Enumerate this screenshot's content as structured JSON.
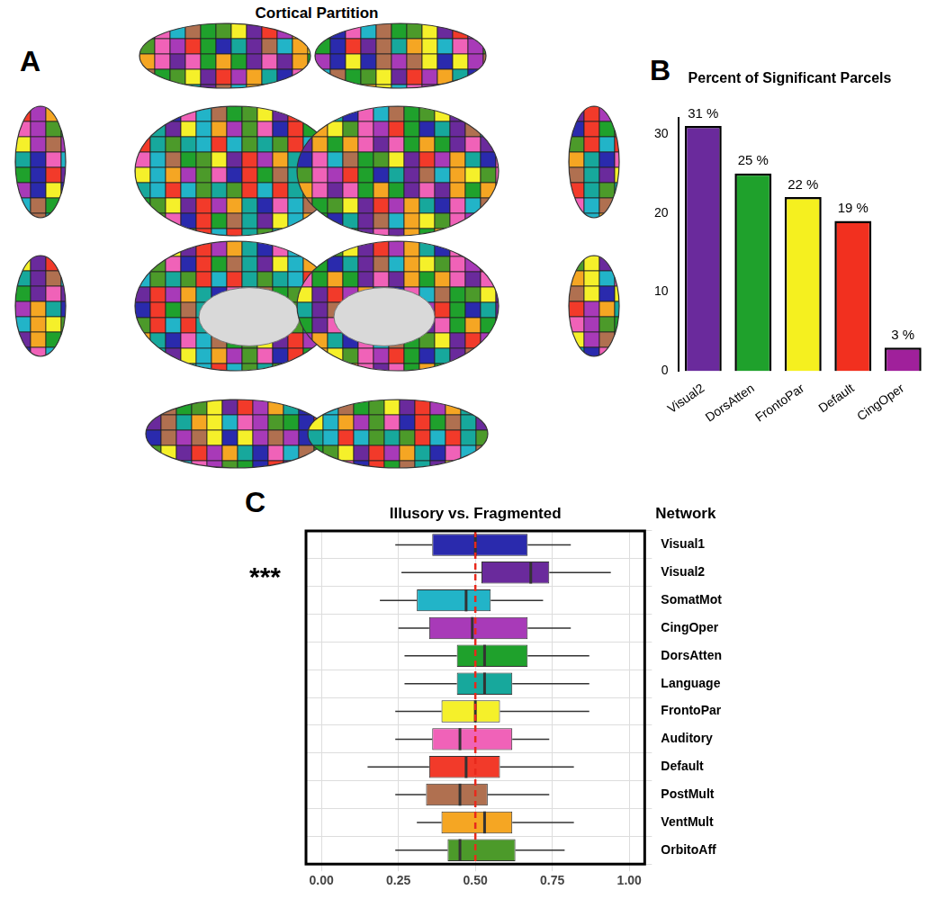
{
  "panel_a": {
    "label": "A",
    "title": "Cortical Partition"
  },
  "chart_data": [
    {
      "type": "bar",
      "label": "B",
      "title": "Percent of Significant Parcels",
      "categories": [
        "Visual2",
        "DorsAtten",
        "FrontoPar",
        "Default",
        "CingOper"
      ],
      "values": [
        31,
        25,
        22,
        19,
        3
      ],
      "value_labels": [
        "31 %",
        "25 %",
        "22 %",
        "19 %",
        "3 %"
      ],
      "data_labels": true,
      "colors": [
        "#6a2a9c",
        "#1fa12c",
        "#f5f01f",
        "#f2301f",
        "#a0209b"
      ],
      "ylim": [
        0,
        32
      ],
      "yticks": [
        0,
        10,
        20,
        30
      ],
      "grid": false
    },
    {
      "type": "boxplot",
      "label": "C",
      "title": "Illusory vs. Fragmented",
      "y_label": "Network",
      "orientation": "horizontal",
      "categories": [
        "Visual1",
        "Visual2",
        "SomatMot",
        "CingOper",
        "DorsAtten",
        "Language",
        "FrontoPar",
        "Auditory",
        "Default",
        "PostMult",
        "VentMult",
        "OrbitoAff"
      ],
      "min": [
        0.24,
        0.26,
        0.19,
        0.25,
        0.27,
        0.27,
        0.24,
        0.24,
        0.15,
        0.24,
        0.31,
        0.24
      ],
      "q1": [
        0.36,
        0.52,
        0.31,
        0.35,
        0.44,
        0.44,
        0.39,
        0.36,
        0.35,
        0.34,
        0.39,
        0.41
      ],
      "median": [
        0.5,
        0.68,
        0.47,
        0.49,
        0.53,
        0.53,
        0.5,
        0.45,
        0.47,
        0.45,
        0.53,
        0.45
      ],
      "q3": [
        0.67,
        0.74,
        0.55,
        0.67,
        0.67,
        0.62,
        0.58,
        0.62,
        0.58,
        0.54,
        0.62,
        0.63
      ],
      "max": [
        0.81,
        0.94,
        0.72,
        0.81,
        0.87,
        0.87,
        0.87,
        0.74,
        0.82,
        0.74,
        0.82,
        0.79
      ],
      "colors": [
        "#2a2aad",
        "#6a2a9c",
        "#22b4c8",
        "#a83ab8",
        "#1fa12c",
        "#17a89c",
        "#f5f02a",
        "#f062b8",
        "#f23a2a",
        "#b07050",
        "#f5a623",
        "#4c9a2a"
      ],
      "xlim": [
        -0.05,
        1.05
      ],
      "xticks": [
        {
          "value": 0,
          "label": "0.00"
        },
        {
          "value": 0.25,
          "label": "0.25"
        },
        {
          "value": 0.5,
          "label": "0.50"
        },
        {
          "value": 0.75,
          "label": "0.75"
        },
        {
          "value": 1,
          "label": "1.00"
        }
      ],
      "grid": true,
      "reference_line": {
        "value": 0.5,
        "color": "#e8291c",
        "line_style": "dashed"
      },
      "annotations": [
        {
          "category": "Visual2",
          "text": "***"
        }
      ]
    }
  ]
}
